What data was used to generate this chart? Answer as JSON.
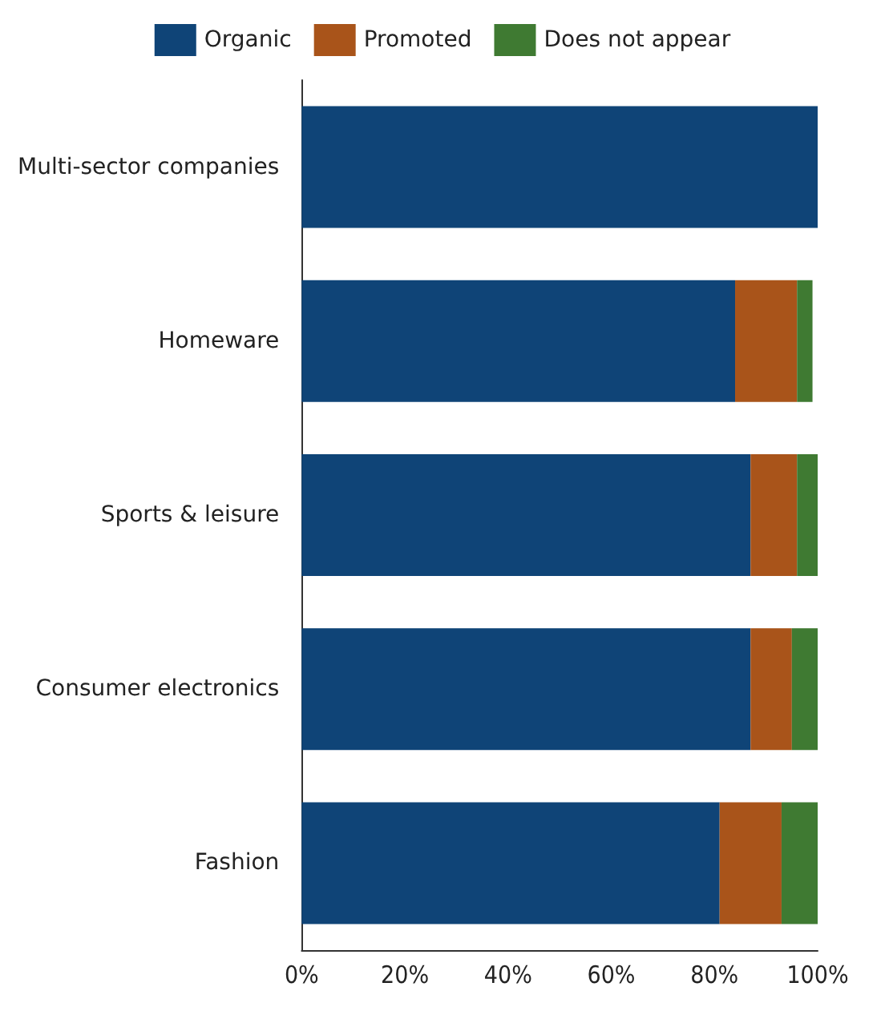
{
  "chart_data": {
    "type": "bar",
    "orientation": "horizontal",
    "stacked": true,
    "categories": [
      "Multi-sector companies",
      "Homeware",
      "Sports & leisure",
      "Consumer electronics",
      "Fashion"
    ],
    "series": [
      {
        "name": "Organic",
        "color": "#0f4477",
        "values": [
          100,
          84,
          87,
          87,
          81
        ]
      },
      {
        "name": "Promoted",
        "color": "#a9541a",
        "values": [
          0,
          12,
          9,
          8,
          12
        ]
      },
      {
        "name": "Does not appear",
        "color": "#3f7a32",
        "values": [
          0,
          3,
          4,
          5,
          7
        ]
      }
    ],
    "xlim": [
      0,
      100
    ],
    "xticks": [
      {
        "value": 0,
        "label": "0%"
      },
      {
        "value": 20,
        "label": "20%"
      },
      {
        "value": 40,
        "label": "40%"
      },
      {
        "value": 60,
        "label": "60%"
      },
      {
        "value": 80,
        "label": "80%"
      },
      {
        "value": 100,
        "label": "100%"
      }
    ],
    "grid": false,
    "legend": "top"
  }
}
